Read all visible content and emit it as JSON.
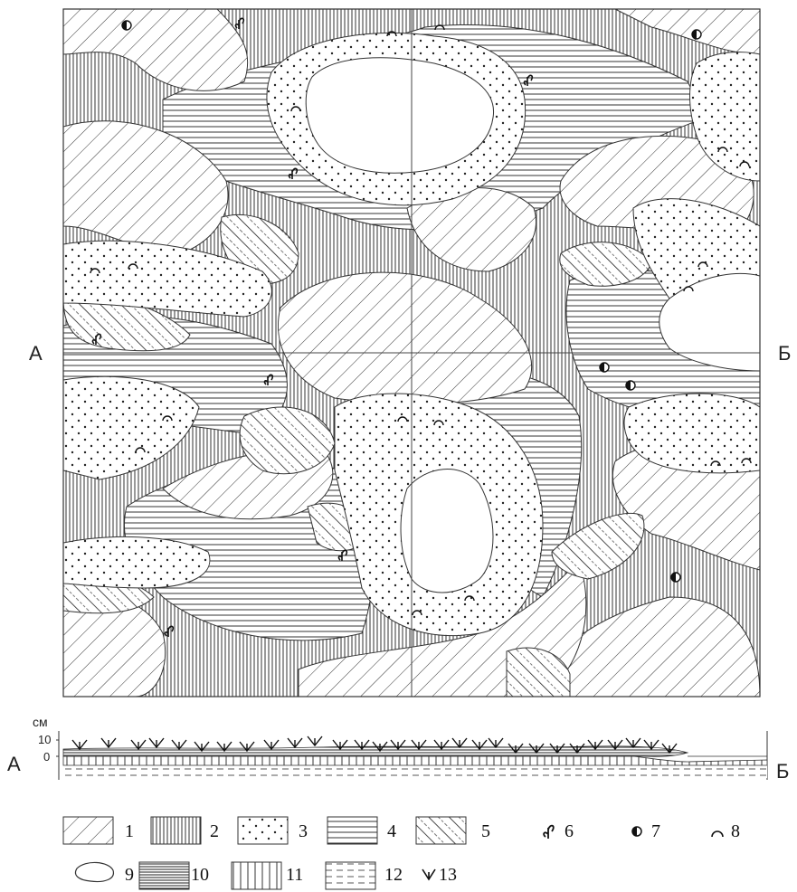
{
  "profile": {
    "start_label": "А",
    "end_label": "Б",
    "unit_label": "см",
    "tick_10": "10",
    "tick_0": "0"
  },
  "map": {
    "start_label": "А",
    "end_label": "Б"
  },
  "legend": [
    {
      "number": "1",
      "pattern": "diagonal-hatch-right"
    },
    {
      "number": "2",
      "pattern": "vertical-dense-lines"
    },
    {
      "number": "3",
      "pattern": "dotted"
    },
    {
      "number": "4",
      "pattern": "horizontal-lines"
    },
    {
      "number": "5",
      "pattern": "diagonal-hatch-left-dashed"
    },
    {
      "number": "6",
      "symbol": "sprout-icon"
    },
    {
      "number": "7",
      "symbol": "half-filled-circle-icon"
    },
    {
      "number": "8",
      "symbol": "arc-icon"
    },
    {
      "number": "9",
      "pattern": "blank-outline"
    },
    {
      "number": "10",
      "pattern": "horizontal-dense-lines"
    },
    {
      "number": "11",
      "pattern": "vertical-lines"
    },
    {
      "number": "12",
      "pattern": "dashed-horizontal"
    },
    {
      "number": "13",
      "symbol": "grass-tuft-icon"
    }
  ]
}
